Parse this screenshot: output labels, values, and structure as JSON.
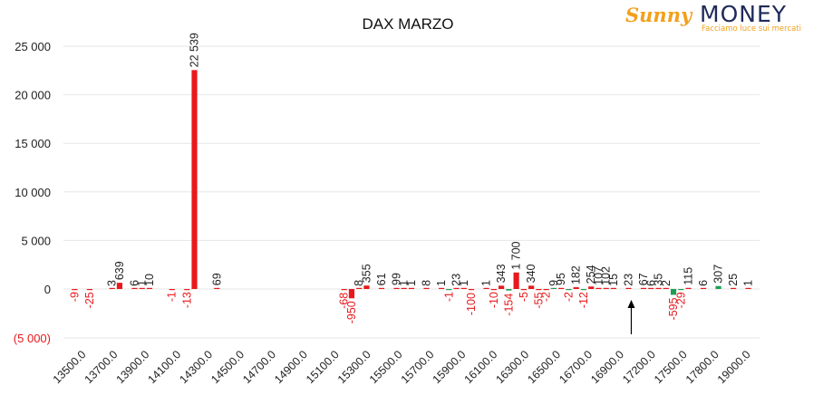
{
  "logo": {
    "brand_a": "Sunny",
    "brand_b": "MONEY",
    "tagline": "Facciamo luce sui mercati",
    "color_a": "#f2a01b",
    "color_b": "#1f2a5a"
  },
  "chart_data": {
    "type": "bar",
    "title": "DAX MARZO",
    "xlabel": "",
    "ylabel": "",
    "ylim": [
      -5000,
      25000
    ],
    "yticks": [
      25000,
      20000,
      15000,
      10000,
      5000,
      0,
      -5000
    ],
    "ytick_labels": [
      "25 000",
      "20 000",
      "15 000",
      "10 000",
      "5 000",
      "0",
      "(5 000)"
    ],
    "xtick_labels": [
      "13500.0",
      "13700.0",
      "13900.0",
      "14100.0",
      "14300.0",
      "14500.0",
      "14700.0",
      "14900.0",
      "15100.0",
      "15300.0",
      "15500.0",
      "15700.0",
      "15900.0",
      "16100.0",
      "16300.0",
      "16500.0",
      "16700.0",
      "16900.0",
      "17200.0",
      "17500.0",
      "17800.0",
      "19000.0"
    ],
    "colors": {
      "negative": "#e8191c",
      "positive": "#1e9e55",
      "neg_label": "#e8191c",
      "pos_label": "#222222"
    },
    "bars": [
      {
        "value": -9,
        "slot": 1
      },
      {
        "value": -25,
        "slot": 3
      },
      {
        "value": 3,
        "slot": 6
      },
      {
        "value": 639,
        "slot": 7
      },
      {
        "value": 6,
        "slot": 9
      },
      {
        "value": 1,
        "slot": 10
      },
      {
        "value": 10,
        "slot": 11
      },
      {
        "value": -1,
        "slot": 14
      },
      {
        "value": -13,
        "slot": 16
      },
      {
        "value": 22539,
        "slot": 17
      },
      {
        "value": 69,
        "slot": 20
      },
      {
        "value": -68,
        "slot": 37
      },
      {
        "value": -950,
        "slot": 38
      },
      {
        "value": 8,
        "slot": 39
      },
      {
        "value": 355,
        "slot": 40
      },
      {
        "value": 61,
        "slot": 42
      },
      {
        "value": 99,
        "slot": 44
      },
      {
        "value": 1,
        "slot": 45
      },
      {
        "value": 1,
        "slot": 46
      },
      {
        "value": 8,
        "slot": 48
      },
      {
        "value": 1,
        "slot": 50
      },
      {
        "value": -1,
        "slot": 51
      },
      {
        "value": 23,
        "slot": 52
      },
      {
        "value": 1,
        "slot": 53
      },
      {
        "value": -100,
        "slot": 54
      },
      {
        "value": 1,
        "slot": 56
      },
      {
        "value": -10,
        "slot": 57
      },
      {
        "value": 343,
        "slot": 58
      },
      {
        "value": -154,
        "slot": 59
      },
      {
        "value": 1700,
        "slot": 60
      },
      {
        "value": -5,
        "slot": 61
      },
      {
        "value": 340,
        "slot": 62
      },
      {
        "value": -55,
        "slot": 63
      },
      {
        "value": -2,
        "slot": 64
      },
      {
        "value": 9,
        "slot": 65
      },
      {
        "value": 95,
        "slot": 66
      },
      {
        "value": -2,
        "slot": 67
      },
      {
        "value": 182,
        "slot": 68
      },
      {
        "value": -12,
        "slot": 69
      },
      {
        "value": 254,
        "slot": 70
      },
      {
        "value": 107,
        "slot": 71
      },
      {
        "value": 102,
        "slot": 72
      },
      {
        "value": 15,
        "slot": 73
      },
      {
        "value": 23,
        "slot": 75
      },
      {
        "value": 67,
        "slot": 77
      },
      {
        "value": 6,
        "slot": 78
      },
      {
        "value": 35,
        "slot": 79
      },
      {
        "value": 2,
        "slot": 80
      },
      {
        "value": -595,
        "slot": 81
      },
      {
        "value": -29,
        "slot": 82
      },
      {
        "value": 115,
        "slot": 83
      },
      {
        "value": 6,
        "slot": 85
      },
      {
        "value": 307,
        "slot": 87
      },
      {
        "value": 25,
        "slot": 89
      },
      {
        "value": 1,
        "slot": 91
      }
    ],
    "slot_count": 93,
    "positive_green_slots": [
      51,
      59,
      65,
      67,
      69,
      81,
      82,
      87
    ],
    "annotation": {
      "type": "arrow-up",
      "slot": 75,
      "meaning": "current price marker"
    },
    "grid": true,
    "legend": "none"
  }
}
